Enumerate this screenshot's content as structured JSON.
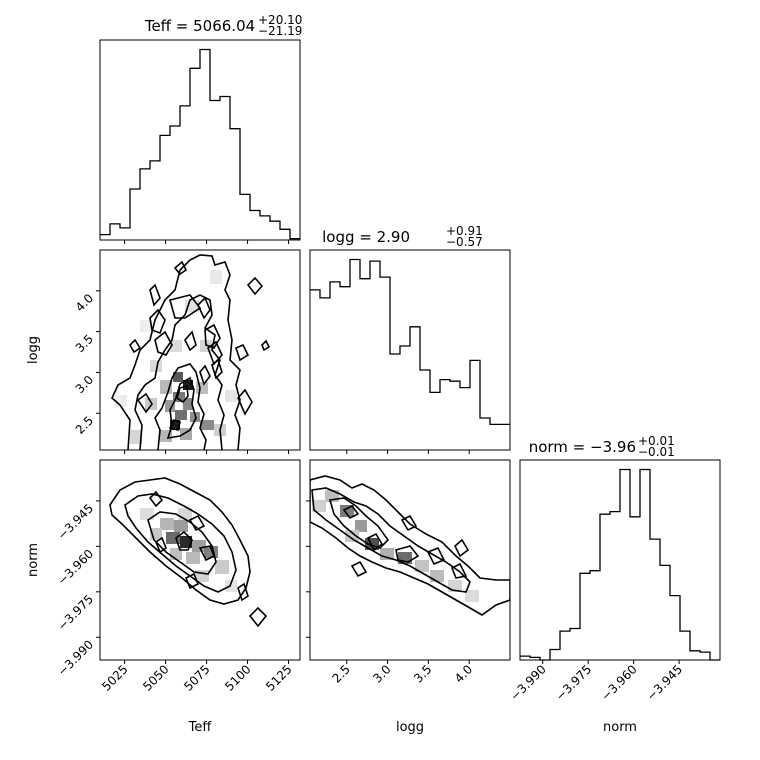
{
  "chart_data": {
    "type": "corner",
    "parameters": [
      "Teff",
      "logg",
      "norm"
    ],
    "titles": {
      "teff": {
        "text": "Teff = 5066.04",
        "sup": "+20.10",
        "sub": "−21.19"
      },
      "logg": {
        "text": "logg = 2.90",
        "sup": "+0.91",
        "sub": "−0.57"
      },
      "norm": {
        "text": "norm = −3.96",
        "sup": "+0.01",
        "sub": "−0.01"
      }
    },
    "axis_labels": {
      "teff": "Teff",
      "logg": "logg",
      "norm": "norm"
    },
    "ranges": {
      "teff": [
        5010,
        5132
      ],
      "logg": [
        2.05,
        4.5
      ],
      "norm": [
        -3.9975,
        -3.9315
      ]
    },
    "ticks": {
      "teff": [
        {
          "v": 5025,
          "label": "5025"
        },
        {
          "v": 5050,
          "label": "5050"
        },
        {
          "v": 5075,
          "label": "5075"
        },
        {
          "v": 5100,
          "label": "5100"
        },
        {
          "v": 5125,
          "label": "5125"
        }
      ],
      "logg": [
        {
          "v": 2.5,
          "label": "2.5"
        },
        {
          "v": 3.0,
          "label": "3.0"
        },
        {
          "v": 3.5,
          "label": "3.5"
        },
        {
          "v": 4.0,
          "label": "4.0"
        }
      ],
      "norm": [
        {
          "v": -3.99,
          "label": "−3.990"
        },
        {
          "v": -3.975,
          "label": "−3.975"
        },
        {
          "v": -3.96,
          "label": "−3.960"
        },
        {
          "v": -3.945,
          "label": "−3.945"
        }
      ]
    },
    "histograms": {
      "teff": {
        "edges": [
          5010,
          5016.1,
          5022.2,
          5028.3,
          5034.4,
          5040.5,
          5046.6,
          5052.7,
          5058.8,
          5064.9,
          5071.0,
          5077.1,
          5083.2,
          5089.3,
          5095.4,
          5101.5,
          5107.6,
          5113.7,
          5119.8,
          5125.9,
          5132.0
        ],
        "counts": [
          4,
          12,
          9,
          38,
          53,
          59,
          78,
          85,
          100,
          128,
          142,
          104,
          107,
          83,
          34,
          22,
          18,
          14,
          8,
          1
        ]
      },
      "logg": {
        "edges": [
          2.05,
          2.1725,
          2.295,
          2.4175,
          2.54,
          2.6625,
          2.785,
          2.9075,
          3.03,
          3.1525,
          3.275,
          3.3975,
          3.52,
          3.6425,
          3.765,
          3.8875,
          4.01,
          4.1325,
          4.255,
          4.3775,
          4.5
        ],
        "counts": [
          100,
          95,
          105,
          102,
          119,
          107,
          118,
          108,
          60,
          65,
          77,
          50,
          36,
          44,
          43,
          39,
          56,
          20,
          16,
          16
        ]
      },
      "norm": {
        "edges": [
          -3.9975,
          -3.9942,
          -3.9909,
          -3.9876,
          -3.9843,
          -3.981,
          -3.9777,
          -3.9744,
          -3.9711,
          -3.9678,
          -3.9645,
          -3.9612,
          -3.9579,
          -3.9546,
          -3.9513,
          -3.948,
          -3.9447,
          -3.9414,
          -3.9381,
          -3.9348,
          -3.9315
        ],
        "counts": [
          3,
          2,
          0,
          8,
          22,
          24,
          66,
          68,
          111,
          113,
          145,
          109,
          145,
          92,
          72,
          49,
          22,
          7,
          6,
          0
        ]
      }
    }
  }
}
